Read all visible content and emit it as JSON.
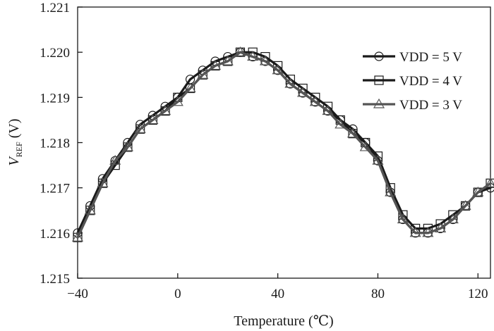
{
  "chart_data": {
    "type": "line",
    "xlabel": "Temperature (℃)",
    "ylabel": {
      "main": "V",
      "subscript": "REF",
      "unit": " (V)"
    },
    "xlim": [
      -40,
      125
    ],
    "ylim": [
      1.215,
      1.221
    ],
    "x_ticks": [
      -40,
      0,
      40,
      80,
      120
    ],
    "x_tick_labels": [
      "−40",
      "0",
      "40",
      "80",
      "120"
    ],
    "y_ticks": [
      1.215,
      1.216,
      1.217,
      1.218,
      1.219,
      1.22,
      1.221
    ],
    "y_tick_labels": [
      "1.215",
      "1.216",
      "1.217",
      "1.218",
      "1.219",
      "1.220",
      "1.221"
    ],
    "grid": false,
    "legend_position": "top-right",
    "x": [
      -40,
      -35,
      -30,
      -25,
      -20,
      -15,
      -10,
      -5,
      0,
      5,
      10,
      15,
      20,
      25,
      30,
      35,
      40,
      45,
      50,
      55,
      60,
      65,
      70,
      75,
      80,
      85,
      90,
      95,
      100,
      105,
      110,
      115,
      120,
      125
    ],
    "series": [
      {
        "name": "VDD = 5 V",
        "marker": "circle",
        "color": "#1a1a1a",
        "values": [
          1.216,
          1.2166,
          1.2172,
          1.2176,
          1.218,
          1.2184,
          1.2186,
          1.2188,
          1.219,
          1.2194,
          1.2196,
          1.2198,
          1.2199,
          1.22,
          1.2199,
          1.2198,
          1.2196,
          1.2193,
          1.2191,
          1.2189,
          1.2187,
          1.2185,
          1.2183,
          1.218,
          1.2176,
          1.2169,
          1.2163,
          1.216,
          1.216,
          1.2161,
          1.2163,
          1.2166,
          1.2169,
          1.217
        ]
      },
      {
        "name": "VDD = 4 V",
        "marker": "square",
        "color": "#1a1a1a",
        "values": [
          1.2159,
          1.2165,
          1.2171,
          1.2175,
          1.2179,
          1.2183,
          1.2185,
          1.2187,
          1.219,
          1.2192,
          1.2195,
          1.2197,
          1.2198,
          1.22,
          1.22,
          1.2199,
          1.2197,
          1.2194,
          1.2192,
          1.219,
          1.2188,
          1.2185,
          1.2182,
          1.218,
          1.2177,
          1.217,
          1.2164,
          1.2161,
          1.2161,
          1.2162,
          1.2164,
          1.2166,
          1.2169,
          1.2171
        ]
      },
      {
        "name": "VDD = 3 V",
        "marker": "triangle",
        "color": "#555555",
        "values": [
          1.2159,
          1.2165,
          1.2171,
          1.2176,
          1.2179,
          1.2183,
          1.2185,
          1.2187,
          1.2189,
          1.2192,
          1.2195,
          1.2197,
          1.2198,
          1.22,
          1.2199,
          1.2198,
          1.2196,
          1.2193,
          1.2191,
          1.2189,
          1.2187,
          1.2184,
          1.2182,
          1.2179,
          1.2176,
          1.2169,
          1.2163,
          1.216,
          1.216,
          1.2161,
          1.2163,
          1.2166,
          1.2169,
          1.2171
        ]
      }
    ]
  }
}
